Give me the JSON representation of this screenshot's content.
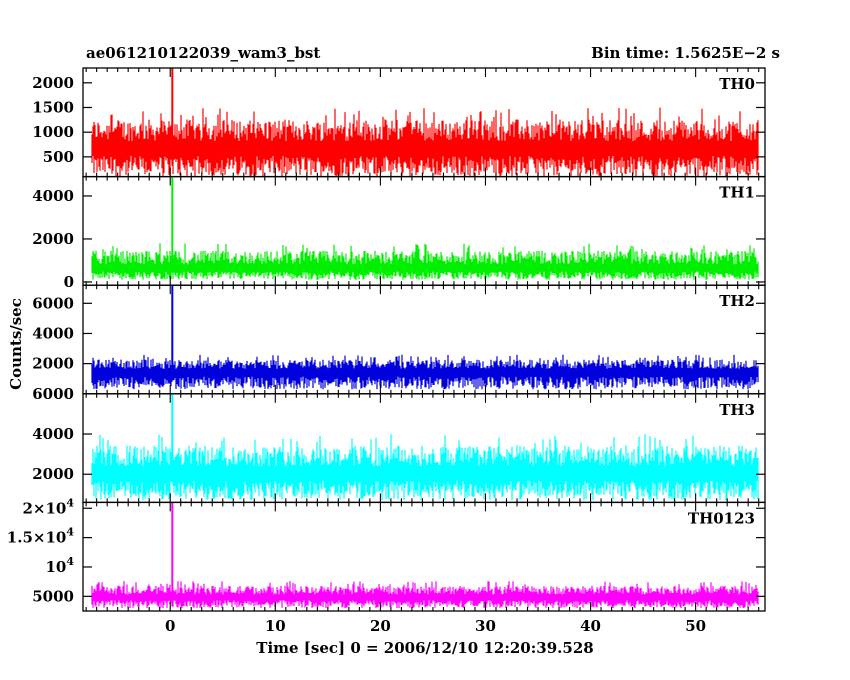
{
  "header": {
    "title": "ae061210122039_wam3_bst",
    "bin_time": "Bin time: 1.5625E−2 s"
  },
  "chart_data": {
    "type": "line",
    "xlabel": "Time [sec] 0 = 2006/12/10 12:20:39.528",
    "ylabel": "Counts/sec",
    "xlim": [
      -8.3,
      56.6
    ],
    "x_ticks": [
      0,
      10,
      20,
      30,
      40,
      50
    ],
    "data_range_x": [
      -7.5,
      56
    ],
    "burst_time": 0.2,
    "panels": [
      {
        "name": "TH0",
        "color": "#ff0000",
        "ylim": [
          100,
          2300
        ],
        "y_ticks": [
          {
            "v": 500,
            "label": "500"
          },
          {
            "v": 1000,
            "label": "1000"
          },
          {
            "v": 1500,
            "label": "1500"
          },
          {
            "v": 2000,
            "label": "2000"
          }
        ],
        "mean": 700,
        "noise_low": 100,
        "noise_high": 1500,
        "peak": 2300
      },
      {
        "name": "TH1",
        "color": "#00ee00",
        "ylim": [
          -150,
          4900
        ],
        "y_ticks": [
          {
            "v": 0,
            "label": "0"
          },
          {
            "v": 2000,
            "label": "2000"
          },
          {
            "v": 4000,
            "label": "4000"
          }
        ],
        "mean": 650,
        "noise_low": 100,
        "noise_high": 1800,
        "peak": 4900
      },
      {
        "name": "TH2",
        "color": "#0000dd",
        "ylim": [
          0,
          7200
        ],
        "y_ticks": [
          {
            "v": 2000,
            "label": "2000"
          },
          {
            "v": 4000,
            "label": "4000"
          },
          {
            "v": 6000,
            "label": "6000"
          }
        ],
        "mean": 1500,
        "noise_low": 300,
        "noise_high": 2600,
        "peak": 7200
      },
      {
        "name": "TH3",
        "color": "#00ffff",
        "ylim": [
          600,
          6000
        ],
        "y_ticks": [
          {
            "v": 2000,
            "label": "2000"
          },
          {
            "v": 4000,
            "label": "4000"
          },
          {
            "v": 6000,
            "label": "6000"
          }
        ],
        "mean": 2100,
        "noise_low": 700,
        "noise_high": 4000,
        "peak": 6000
      },
      {
        "name": "TH0123",
        "color": "#ff00ff",
        "ylim": [
          2500,
          21000
        ],
        "y_ticks": [
          {
            "v": 5000,
            "label": "5000",
            "exp": ""
          },
          {
            "v": 10000,
            "label": "10",
            "exp": "4"
          },
          {
            "v": 15000,
            "label": "1.5×10",
            "exp": "4"
          },
          {
            "v": 20000,
            "label": "2×10",
            "exp": "4"
          }
        ],
        "mean": 4900,
        "noise_low": 3000,
        "noise_high": 7600,
        "peak": 21000
      }
    ]
  }
}
